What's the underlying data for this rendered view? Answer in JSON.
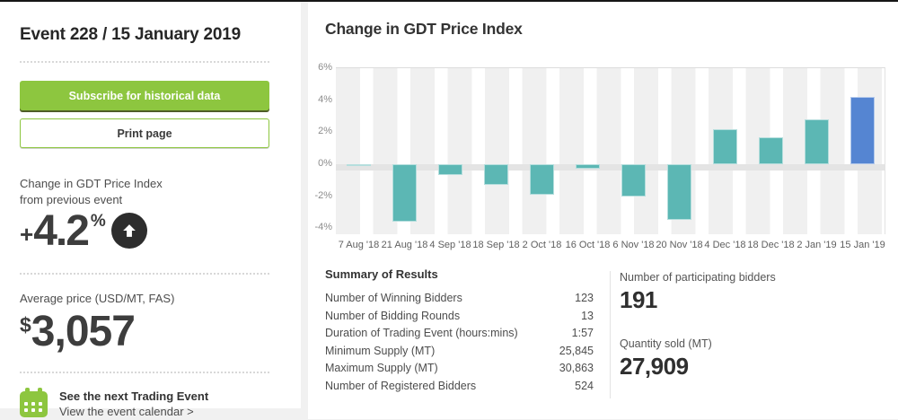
{
  "sidebar": {
    "title": "Event 228 / 15 January 2019",
    "subscribe_label": "Subscribe for historical data",
    "print_label": "Print page",
    "change": {
      "label_line1": "Change in GDT Price Index",
      "label_line2": "from previous event",
      "sign": "+",
      "value": "4.2",
      "unit": "%",
      "direction": "up"
    },
    "average_price": {
      "label": "Average price (USD/MT, FAS)",
      "currency": "$",
      "value": "3,057"
    },
    "next_event": {
      "title": "See the next Trading Event",
      "link": "View the event calendar >"
    }
  },
  "chart": {
    "title": "Change in GDT Price Index"
  },
  "chart_data": {
    "type": "bar",
    "title": "Change in GDT Price Index",
    "categories": [
      "7 Aug '18",
      "21 Aug '18",
      "4 Sep '18",
      "18 Sep '18",
      "2 Oct '18",
      "16 Oct '18",
      "6 Nov '18",
      "20 Nov '18",
      "4 Dec '18",
      "18 Dec '18",
      "2 Jan '19",
      "15 Jan '19"
    ],
    "values": [
      -0.1,
      -3.6,
      -0.7,
      -1.3,
      -1.9,
      -0.3,
      -2.0,
      -3.5,
      2.2,
      1.7,
      2.8,
      4.2
    ],
    "unit": "%",
    "xlabel": "",
    "ylabel": "",
    "yticks": [
      6,
      4,
      2,
      0,
      -2,
      -4
    ],
    "ylim": [
      -4.4,
      6
    ],
    "highlight_index": 11,
    "legend": "none",
    "grid": "alternating-column-stripes",
    "colors": {
      "bar": "#5cb7b4",
      "highlight": "#5585d2",
      "stripe": "#f0f0f0",
      "zero_band": "#e4e4e4"
    }
  },
  "summary": {
    "title": "Summary of Results",
    "rows": [
      {
        "label": "Number of Winning Bidders",
        "value": "123"
      },
      {
        "label": "Number of Bidding Rounds",
        "value": "13"
      },
      {
        "label": "Duration of Trading Event (hours:mins)",
        "value": "1:57"
      },
      {
        "label": "Minimum Supply (MT)",
        "value": "25,845"
      },
      {
        "label": "Maximum Supply (MT)",
        "value": "30,863"
      },
      {
        "label": "Number of Registered Bidders",
        "value": "524"
      }
    ],
    "stats": [
      {
        "label": "Number of participating bidders",
        "value": "191"
      },
      {
        "label": "Quantity sold (MT)",
        "value": "27,909"
      }
    ]
  },
  "colors": {
    "brand_green": "#8dc63f",
    "page_bg": "#f1f1f1"
  }
}
